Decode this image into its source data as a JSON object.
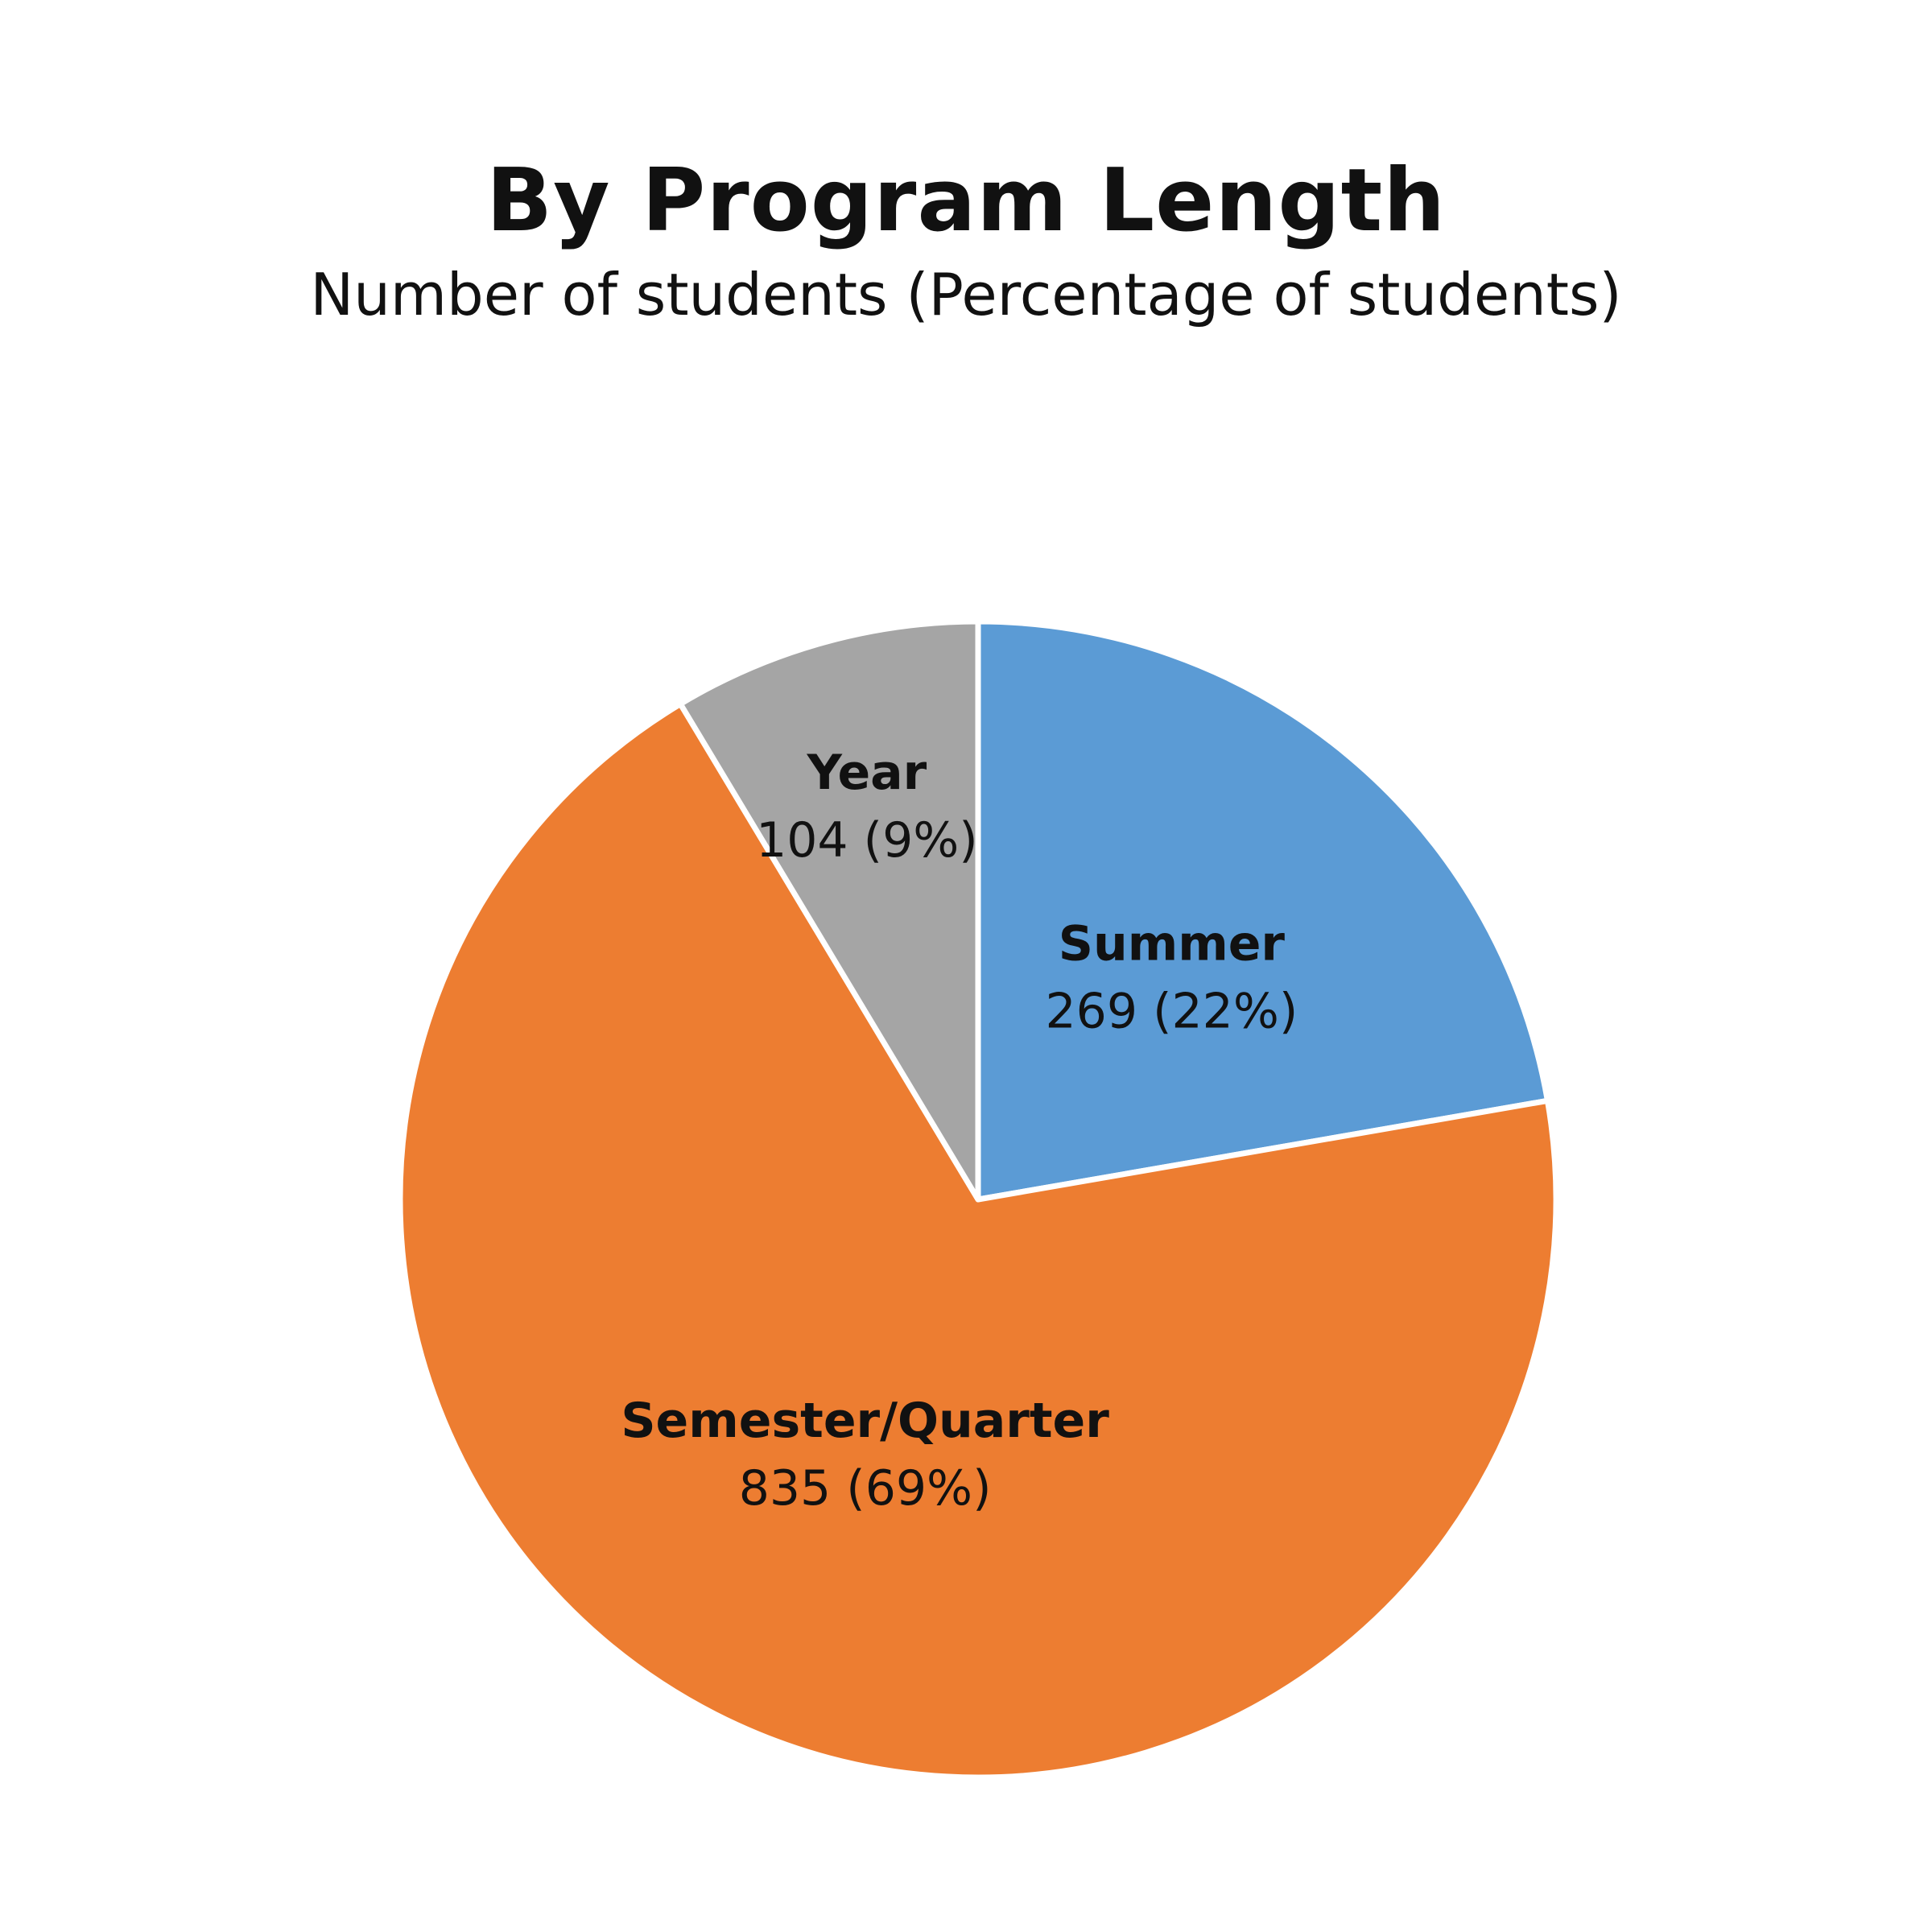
{
  "chart_data": {
    "type": "pie",
    "title": "By Program Length",
    "subtitle": "Number of students (Percentage of students)",
    "start_angle_deg": 0,
    "direction": "clockwise",
    "slices": [
      {
        "name": "Summer",
        "value": 269,
        "percent": 22,
        "label": "269 (22%)",
        "color": "#5B9BD5"
      },
      {
        "name": "Semester/Quarter",
        "value": 835,
        "percent": 69,
        "label": "835 (69%)",
        "color": "#ED7D31"
      },
      {
        "name": "Year",
        "value": 104,
        "percent": 9,
        "label": "104 (9%)",
        "color": "#A5A5A5"
      }
    ],
    "legend": "none",
    "data_labels": "inside"
  }
}
